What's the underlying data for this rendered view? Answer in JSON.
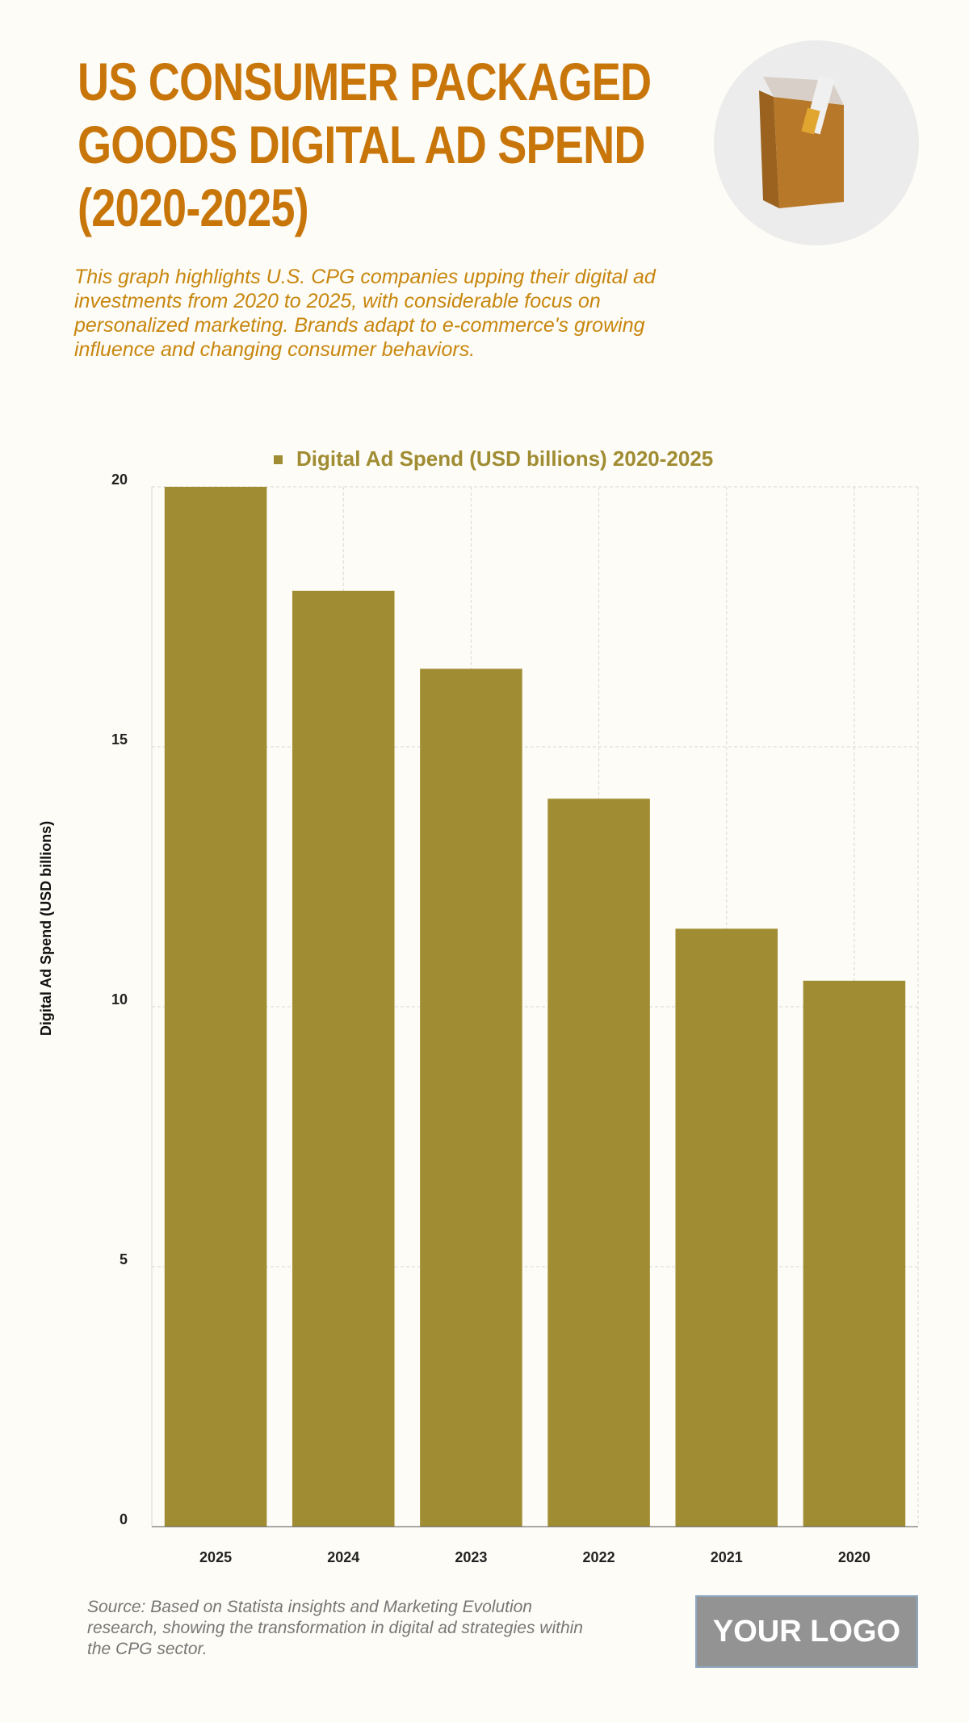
{
  "chart_data": {
    "type": "bar",
    "title": "US CONSUMER PACKAGED GOODS DIGITAL AD SPEND (2020-2025)",
    "subtitle": "This graph highlights U.S. CPG companies upping their digital ad investments from 2020 to 2025, with considerable focus on personalized marketing. Brands adapt to e-commerce's growing influence and changing consumer behaviors.",
    "series": [
      {
        "name": "Digital Ad Spend (USD billions) 2020-2025",
        "color": "#a08c32",
        "values": [
          20,
          18,
          16.5,
          14,
          11.5,
          10.5
        ]
      }
    ],
    "categories": [
      "2025",
      "2024",
      "2023",
      "2022",
      "2021",
      "2020"
    ],
    "y_label": "Digital Ad Spend (USD billions)",
    "ylim": [
      0,
      20
    ],
    "yticks": [
      0,
      5,
      10,
      15,
      20
    ],
    "grid": true,
    "source": "Source: Based on Statista insights and Marketing Evolution research, showing the transformation in digital ad strategies within the CPG sector.",
    "logo_text": "YOUR LOGO"
  }
}
